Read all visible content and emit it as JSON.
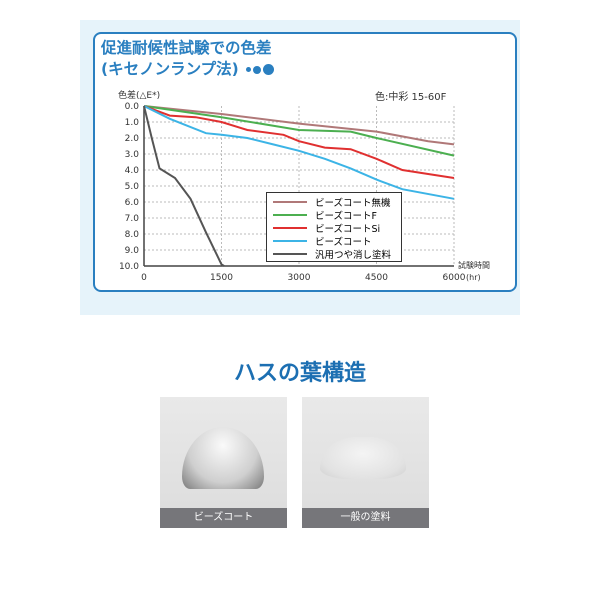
{
  "chart_data": {
    "type": "line",
    "title": "促進耐候性試験での色差\n(キセノンランプ法)",
    "title_line1": "促進耐候性試験での色差",
    "title_line2": "(キセノンランプ法)",
    "ylabel": "色差(△E*)",
    "xlabel": "試験時間",
    "xunit": "(hr)",
    "note": "色:中彩 15-60F",
    "xlim": [
      0,
      6000
    ],
    "ylim": [
      0,
      10
    ],
    "y_inverted": true,
    "grid": true,
    "legend": "bottom-right",
    "xticks": [
      "0",
      "1500",
      "3000",
      "4500",
      "6000"
    ],
    "yticks": [
      "0.0",
      "1.0",
      "2.0",
      "3.0",
      "4.0",
      "5.0",
      "6.0",
      "7.0",
      "8.0",
      "9.0",
      "10.0"
    ],
    "series": [
      {
        "name": "ビーズコート無機",
        "color": "#b07878",
        "x": [
          0,
          1500,
          3000,
          4500,
          5500,
          6000
        ],
        "y": [
          0,
          0.5,
          1.1,
          1.6,
          2.2,
          2.4
        ]
      },
      {
        "name": "ビーズコートF",
        "color": "#4caf50",
        "x": [
          0,
          1500,
          3000,
          4000,
          4500,
          6000
        ],
        "y": [
          0,
          0.7,
          1.5,
          1.6,
          2.0,
          3.1
        ]
      },
      {
        "name": "ビーズコートSi",
        "color": "#e03030",
        "x": [
          0,
          500,
          1000,
          1500,
          2000,
          2700,
          3000,
          3500,
          4000,
          4500,
          5000,
          6000
        ],
        "y": [
          0,
          0.6,
          0.7,
          1.0,
          1.5,
          1.8,
          2.2,
          2.6,
          2.7,
          3.3,
          4.0,
          4.5
        ]
      },
      {
        "name": "ビーズコート",
        "color": "#3cb4e6",
        "x": [
          0,
          500,
          1200,
          1500,
          2000,
          2500,
          3000,
          3500,
          4000,
          4500,
          5000,
          6000
        ],
        "y": [
          0,
          0.8,
          1.7,
          1.8,
          2.0,
          2.4,
          2.8,
          3.3,
          3.9,
          4.6,
          5.2,
          5.8
        ]
      },
      {
        "name": "汎用つや消し塗料",
        "color": "#555555",
        "x": [
          0,
          150,
          300,
          600,
          900,
          1200,
          1500,
          1550
        ],
        "y": [
          0,
          2.0,
          3.9,
          4.5,
          5.8,
          7.9,
          9.9,
          10
        ]
      }
    ]
  },
  "section": {
    "heading": "ハスの葉構造",
    "photos": [
      {
        "caption": "ビーズコート"
      },
      {
        "caption": "一般の塗料"
      }
    ]
  }
}
